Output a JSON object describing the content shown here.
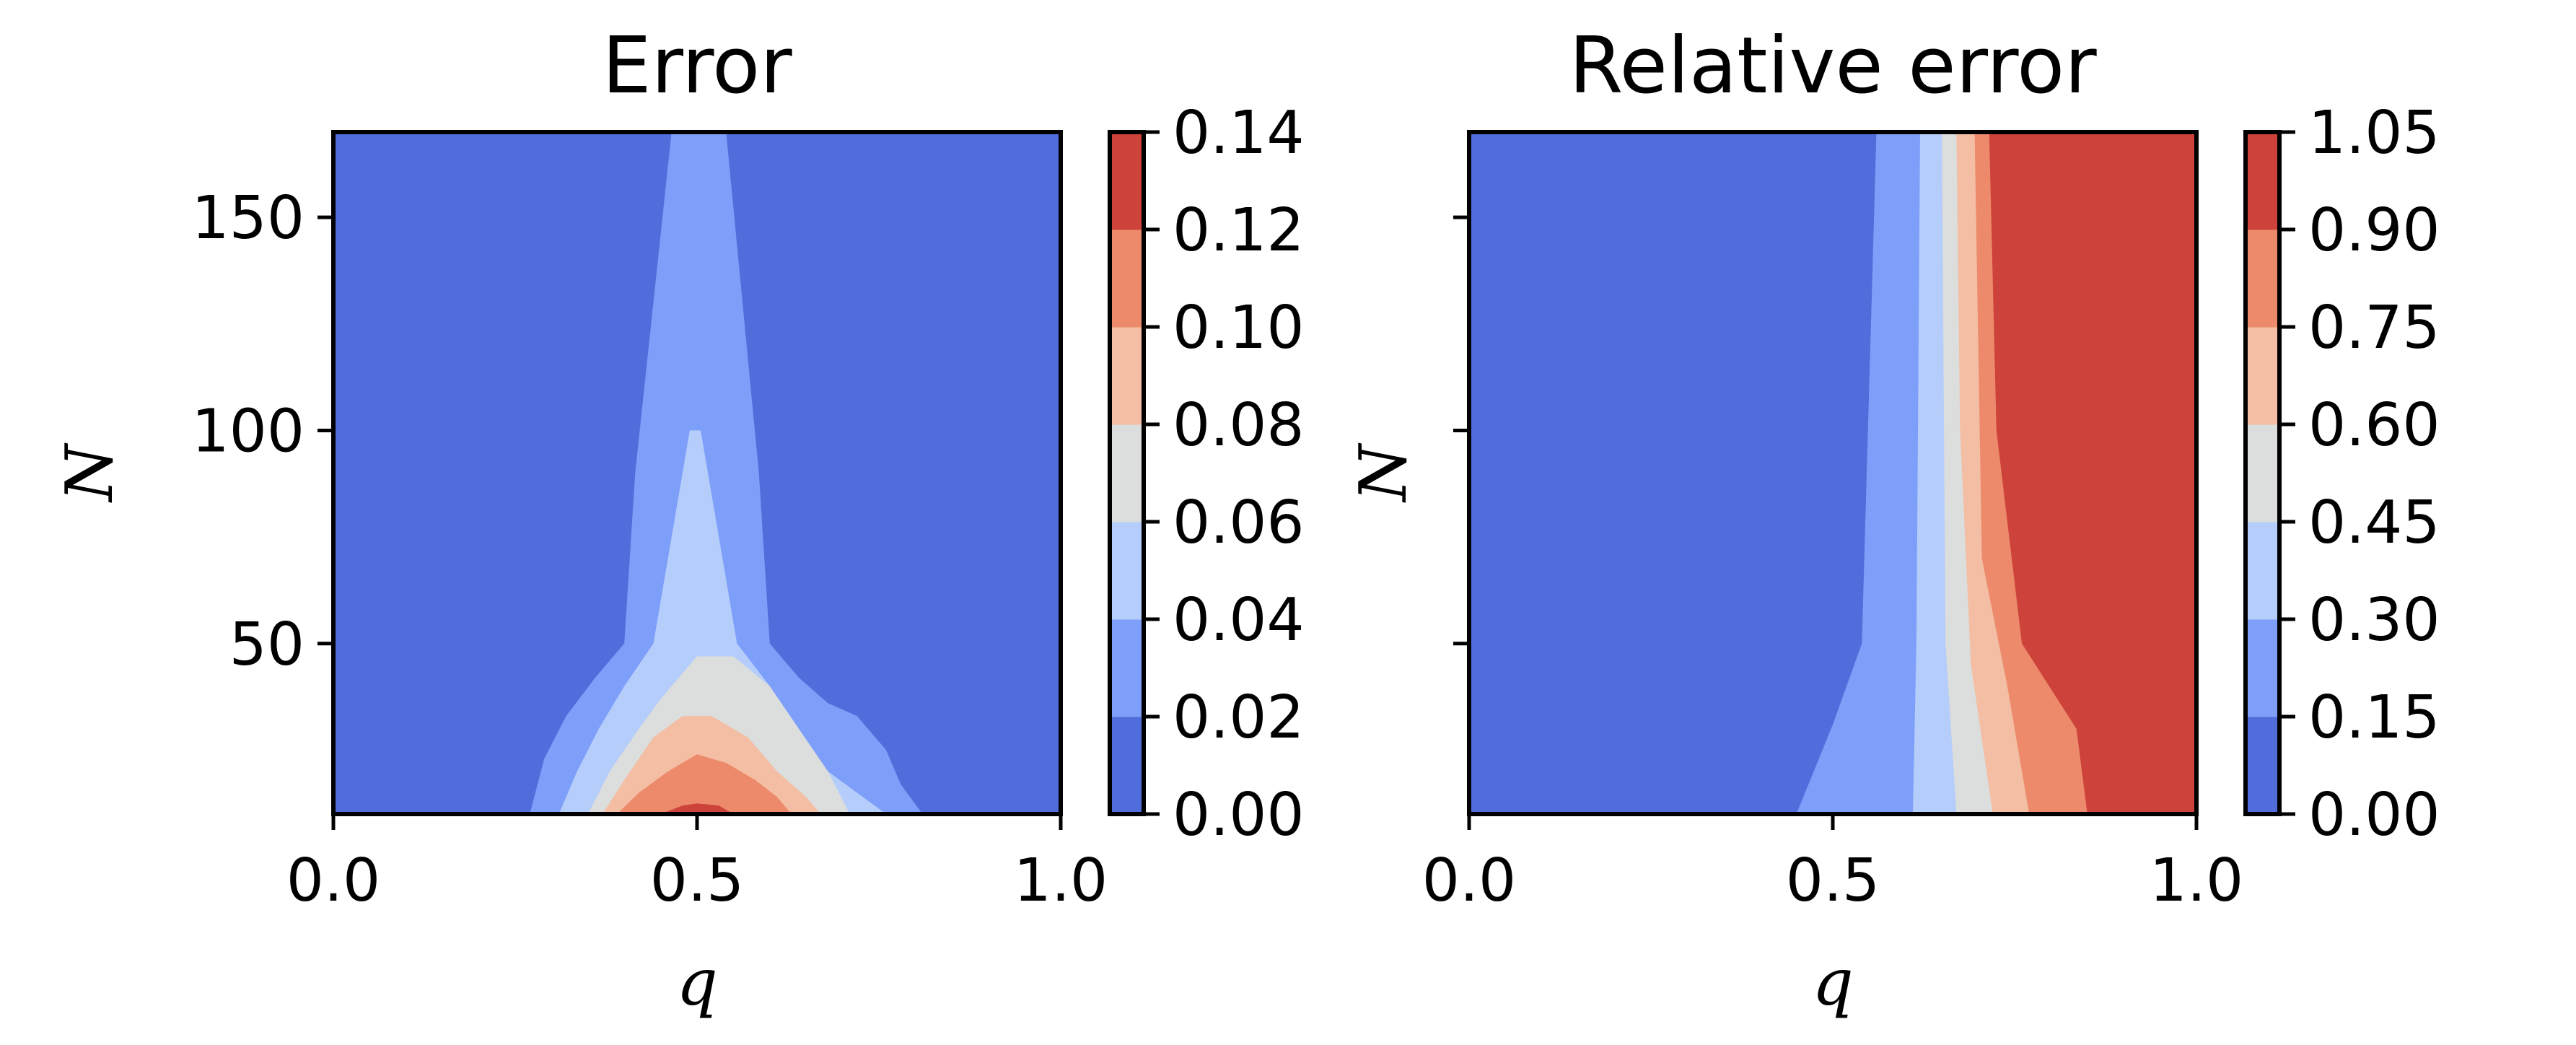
{
  "levels": [
    0.0,
    0.02,
    0.04,
    0.06,
    0.08,
    0.1,
    0.12,
    0.14
  ],
  "palette": [
    "#516ddb",
    "#7e9ff9",
    "#b5cdfa",
    "#dcdddd",
    "#f3bea3",
    "#ec8a6b",
    "#cd423a"
  ],
  "chart_data": [
    {
      "type": "contour",
      "title": "Error",
      "xlabel": "q",
      "ylabel": "N",
      "xlim": [
        0.0,
        1.0
      ],
      "ylim": [
        10,
        170
      ],
      "x_ticks": [
        "0.0",
        "0.5",
        "1.0"
      ],
      "y_ticks": [
        "50",
        "100",
        "150"
      ],
      "colorbar": {
        "min": 0.0,
        "max": 0.14,
        "ticks": [
          "0.00",
          "0.02",
          "0.04",
          "0.06",
          "0.08",
          "0.10",
          "0.12",
          "0.14"
        ]
      },
      "bands": [
        {
          "level_range": [
            0.0,
            0.02
          ],
          "color": "#516ddb"
        },
        {
          "level_range": [
            0.02,
            0.04
          ],
          "color": "#7e9ff9",
          "polygon": [
            [
              0.27,
              10
            ],
            [
              0.29,
              23
            ],
            [
              0.32,
              33
            ],
            [
              0.36,
              42
            ],
            [
              0.4,
              50
            ],
            [
              0.415,
              90
            ],
            [
              0.465,
              170
            ],
            [
              0.54,
              170
            ],
            [
              0.585,
              90
            ],
            [
              0.6,
              50
            ],
            [
              0.64,
              42
            ],
            [
              0.68,
              36
            ],
            [
              0.72,
              33
            ],
            [
              0.76,
              25
            ],
            [
              0.78,
              17
            ],
            [
              0.81,
              10
            ]
          ]
        },
        {
          "level_range": [
            0.04,
            0.06
          ],
          "color": "#b5cdfa",
          "polygon": [
            [
              0.31,
              10
            ],
            [
              0.335,
              20
            ],
            [
              0.365,
              30
            ],
            [
              0.4,
              40
            ],
            [
              0.44,
              50
            ],
            [
              0.47,
              80
            ],
            [
              0.49,
              100
            ],
            [
              0.505,
              100
            ],
            [
              0.525,
              80
            ],
            [
              0.555,
              50
            ],
            [
              0.6,
              40
            ],
            [
              0.635,
              30
            ],
            [
              0.68,
              20
            ],
            [
              0.76,
              10
            ]
          ]
        },
        {
          "level_range": [
            0.06,
            0.08
          ],
          "color": "#dcdddd",
          "polygon": [
            [
              0.35,
              10
            ],
            [
              0.38,
              20
            ],
            [
              0.42,
              30
            ],
            [
              0.45,
              37
            ],
            [
              0.5,
              47
            ],
            [
              0.55,
              47
            ],
            [
              0.6,
              40
            ],
            [
              0.64,
              30
            ],
            [
              0.68,
              20
            ],
            [
              0.71,
              10
            ]
          ]
        },
        {
          "level_range": [
            0.08,
            0.1
          ],
          "color": "#f3bea3",
          "polygon": [
            [
              0.37,
              10
            ],
            [
              0.4,
              18
            ],
            [
              0.44,
              28
            ],
            [
              0.48,
              33
            ],
            [
              0.52,
              33
            ],
            [
              0.57,
              28
            ],
            [
              0.61,
              20
            ],
            [
              0.65,
              14
            ],
            [
              0.67,
              10
            ]
          ]
        },
        {
          "level_range": [
            0.1,
            0.12
          ],
          "color": "#ec8a6b",
          "polygon": [
            [
              0.39,
              10
            ],
            [
              0.42,
              15
            ],
            [
              0.46,
              20
            ],
            [
              0.5,
              24
            ],
            [
              0.54,
              22
            ],
            [
              0.58,
              18
            ],
            [
              0.61,
              14
            ],
            [
              0.63,
              10
            ]
          ]
        },
        {
          "level_range": [
            0.12,
            0.14
          ],
          "color": "#cd423a",
          "polygon": [
            [
              0.45,
              10
            ],
            [
              0.48,
              12
            ],
            [
              0.5,
              12.5
            ],
            [
              0.53,
              12
            ],
            [
              0.55,
              10
            ]
          ]
        }
      ]
    },
    {
      "type": "contour",
      "title": "Relative error",
      "xlabel": "q",
      "ylabel": "N",
      "xlim": [
        0.0,
        1.0
      ],
      "ylim": [
        10,
        170
      ],
      "x_ticks": [
        "0.0",
        "0.5",
        "1.0"
      ],
      "y_ticks": [],
      "colorbar": {
        "min": 0.0,
        "max": 1.05,
        "ticks": [
          "0.00",
          "0.15",
          "0.30",
          "0.45",
          "0.60",
          "0.75",
          "0.90",
          "1.05"
        ]
      },
      "bands": [
        {
          "level_range": [
            0.0,
            0.15
          ],
          "color": "#516ddb"
        },
        {
          "level_range": [
            0.15,
            0.3
          ],
          "color": "#7e9ff9",
          "polygon": [
            [
              0.45,
              10
            ],
            [
              0.5,
              31
            ],
            [
              0.54,
              50
            ],
            [
              0.56,
              170
            ],
            [
              1.0,
              170
            ],
            [
              1.0,
              10
            ]
          ]
        },
        {
          "level_range": [
            0.3,
            0.45
          ],
          "color": "#b5cdfa",
          "polygon": [
            [
              0.61,
              10
            ],
            [
              0.615,
              50
            ],
            [
              0.62,
              170
            ],
            [
              1.0,
              170
            ],
            [
              1.0,
              10
            ]
          ]
        },
        {
          "level_range": [
            0.45,
            0.6
          ],
          "color": "#dcdddd",
          "polygon": [
            [
              0.67,
              10
            ],
            [
              0.655,
              50
            ],
            [
              0.65,
              170
            ],
            [
              1.0,
              170
            ],
            [
              1.0,
              10
            ]
          ]
        },
        {
          "level_range": [
            0.6,
            0.75
          ],
          "color": "#f3bea3",
          "polygon": [
            [
              0.72,
              10
            ],
            [
              0.69,
              45
            ],
            [
              0.675,
              100
            ],
            [
              0.67,
              170
            ],
            [
              1.0,
              170
            ],
            [
              1.0,
              10
            ]
          ]
        },
        {
          "level_range": [
            0.75,
            0.9
          ],
          "color": "#ec8a6b",
          "polygon": [
            [
              0.77,
              10
            ],
            [
              0.74,
              40
            ],
            [
              0.705,
              70
            ],
            [
              0.695,
              170
            ],
            [
              1.0,
              170
            ],
            [
              1.0,
              10
            ]
          ]
        },
        {
          "level_range": [
            0.9,
            1.05
          ],
          "color": "#cd423a",
          "polygon": [
            [
              0.85,
              10
            ],
            [
              0.835,
              30
            ],
            [
              0.79,
              42
            ],
            [
              0.76,
              50
            ],
            [
              0.725,
              100
            ],
            [
              0.715,
              170
            ],
            [
              1.0,
              170
            ],
            [
              1.0,
              10
            ]
          ]
        }
      ]
    }
  ]
}
